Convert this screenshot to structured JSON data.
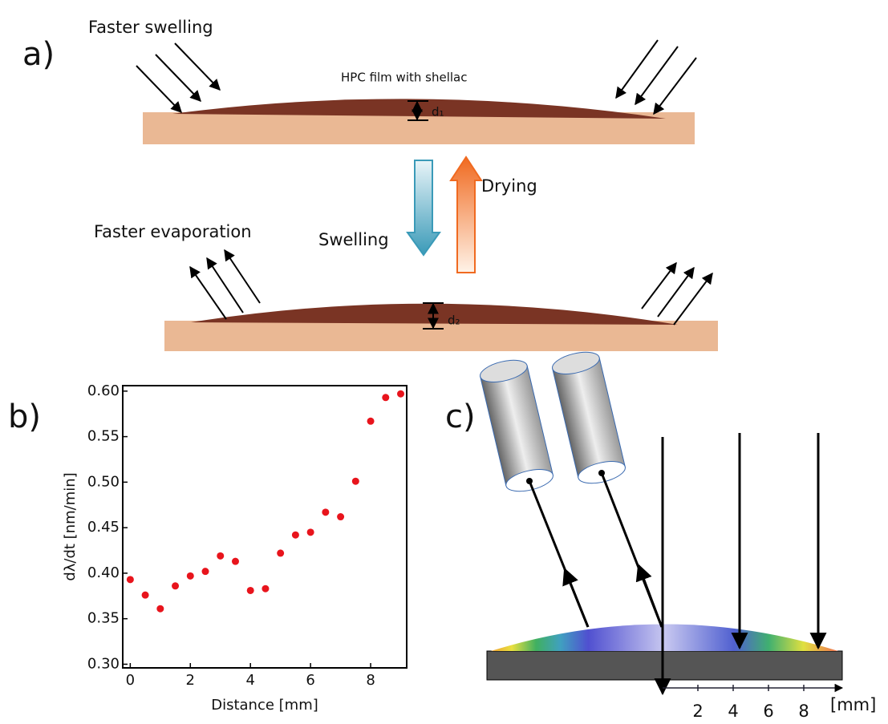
{
  "panel_labels": {
    "a": "a)",
    "b": "b)",
    "c": "c)"
  },
  "panel_a": {
    "faster_swelling": "Faster swelling",
    "film_label": "HPC film with shellac",
    "d1": "d₁",
    "d2": "d₂",
    "drying": "Drying",
    "swelling": "Swelling",
    "faster_evaporation": "Faster evaporation"
  },
  "chart_data": {
    "type": "scatter",
    "xlabel": "Distance [mm]",
    "ylabel": "dλ/dt [nm/min]",
    "color": "#e8141c",
    "x": [
      0,
      0.5,
      1,
      1.5,
      2,
      2.5,
      3,
      3.5,
      4,
      4.5,
      5,
      5.5,
      6,
      6.5,
      7,
      7.5,
      8,
      8.5,
      9
    ],
    "values": [
      0.393,
      0.376,
      0.361,
      0.386,
      0.397,
      0.402,
      0.419,
      0.413,
      0.381,
      0.383,
      0.422,
      0.442,
      0.445,
      0.467,
      0.462,
      0.501,
      0.567,
      0.593,
      0.597
    ],
    "xlim": [
      -0.25,
      9.2
    ],
    "ylim": [
      0.296,
      0.606
    ],
    "xticks": [
      0,
      2,
      4,
      6,
      8
    ],
    "yticks": [
      {
        "value": 0.3,
        "label": "0.30"
      },
      {
        "value": 0.35,
        "label": "0.35"
      },
      {
        "value": 0.4,
        "label": "0.40"
      },
      {
        "value": 0.45,
        "label": "0.45"
      },
      {
        "value": 0.5,
        "label": "0.50"
      },
      {
        "value": 0.55,
        "label": "0.55"
      },
      {
        "value": 0.6,
        "label": "0.60"
      }
    ]
  },
  "panel_c": {
    "scale_ticks": [
      2,
      4,
      6,
      8
    ],
    "scale_unit": "[mm]"
  }
}
